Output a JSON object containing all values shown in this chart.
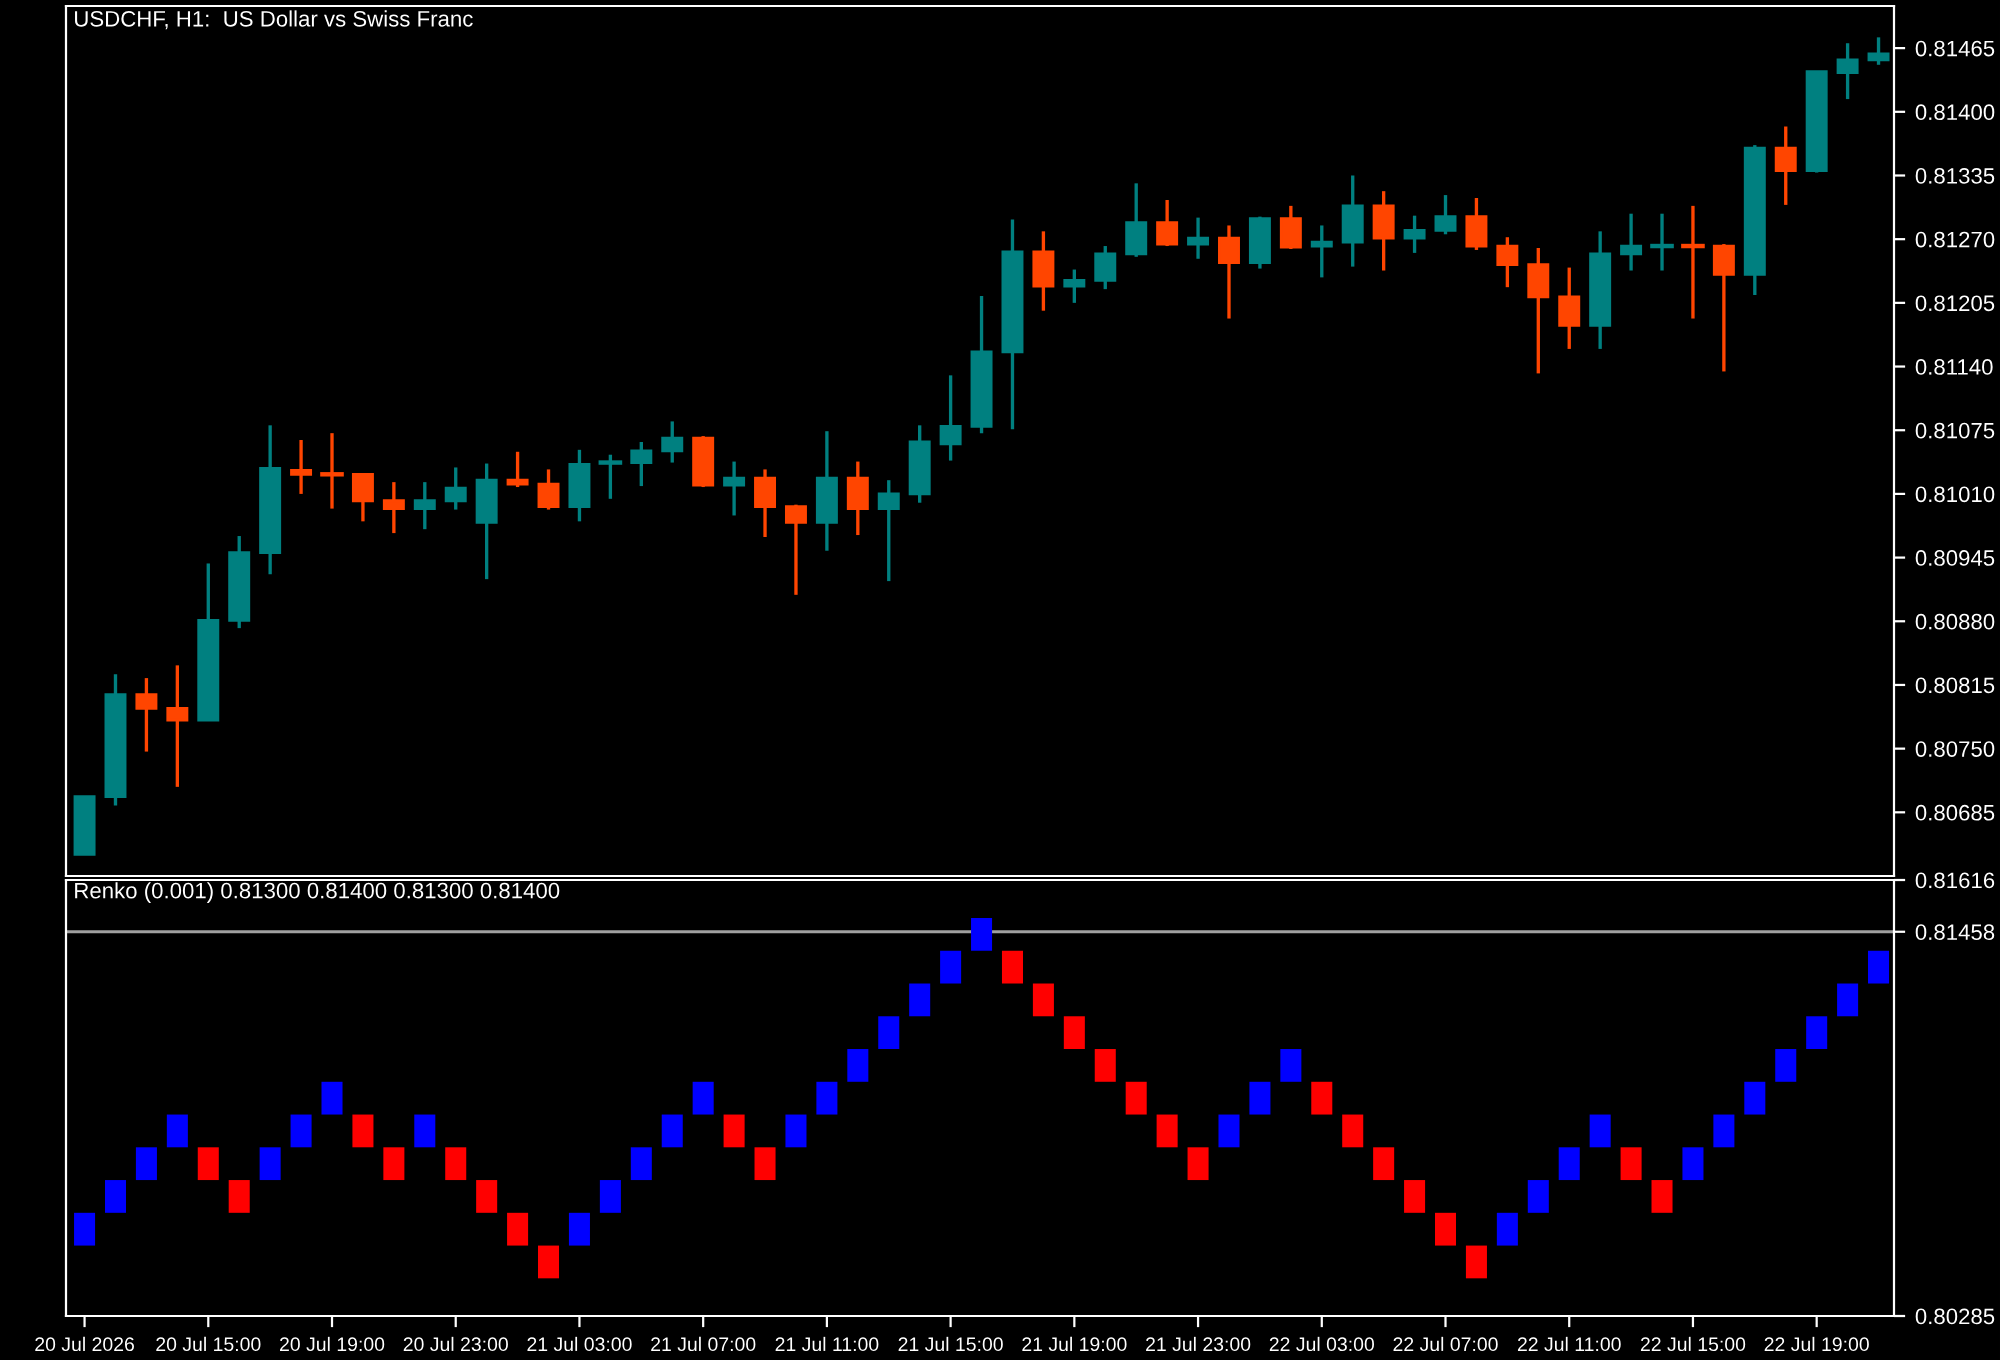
{
  "chart_data": [
    {
      "type": "candlestick",
      "title": "USDCHF, H1:  US Dollar vs Swiss Franc",
      "categories": [
        null,
        null,
        null,
        null,
        null,
        null,
        null,
        null,
        null,
        null,
        null,
        null,
        null,
        null,
        null,
        null,
        null,
        null,
        null,
        null,
        null,
        null,
        null,
        null,
        null,
        null,
        null,
        null,
        null,
        null,
        null,
        null,
        null,
        null,
        null,
        null,
        null,
        null,
        null,
        null,
        null,
        null,
        null,
        null,
        null,
        null,
        null,
        null,
        null,
        null,
        null,
        null,
        null,
        null,
        null,
        null,
        null,
        null,
        null
      ],
      "ohlc": [
        [
          0.80642,
          0.80701,
          0.80642,
          0.80701
        ],
        [
          0.80701,
          0.80826,
          0.80692,
          0.80805
        ],
        [
          0.80805,
          0.80822,
          0.80747,
          0.80791
        ],
        [
          0.80791,
          0.80835,
          0.80711,
          0.80779
        ],
        [
          0.80779,
          0.80939,
          0.80779,
          0.80881
        ],
        [
          0.80881,
          0.80967,
          0.80873,
          0.8095
        ],
        [
          0.8095,
          0.8108,
          0.80928,
          0.81036
        ],
        [
          0.81034,
          0.81065,
          0.8101,
          0.8103
        ],
        [
          0.8103,
          0.81072,
          0.80995,
          0.8103
        ],
        [
          0.8103,
          0.8103,
          0.80982,
          0.81003
        ],
        [
          0.81003,
          0.81022,
          0.8097,
          0.80995
        ],
        [
          0.80995,
          0.81022,
          0.80974,
          0.81003
        ],
        [
          0.81003,
          0.81037,
          0.80994,
          0.81016
        ],
        [
          0.80981,
          0.81041,
          0.80923,
          0.81024
        ],
        [
          0.81024,
          0.81053,
          0.81017,
          0.8102
        ],
        [
          0.8102,
          0.81035,
          0.80994,
          0.80997
        ],
        [
          0.80997,
          0.81055,
          0.80982,
          0.8104
        ],
        [
          0.81042,
          0.8105,
          0.81005,
          0.81042
        ],
        [
          0.81042,
          0.81063,
          0.81018,
          0.81054
        ],
        [
          0.81054,
          0.81084,
          0.81042,
          0.81067
        ],
        [
          0.81067,
          0.81069,
          0.81017,
          0.81019
        ],
        [
          0.81019,
          0.81043,
          0.80988,
          0.81026
        ],
        [
          0.81026,
          0.81035,
          0.80966,
          0.80997
        ],
        [
          0.80997,
          0.80999,
          0.80907,
          0.80981
        ],
        [
          0.80981,
          0.81074,
          0.80952,
          0.81026
        ],
        [
          0.81026,
          0.81043,
          0.80968,
          0.80995
        ],
        [
          0.80995,
          0.81024,
          0.80921,
          0.8101
        ],
        [
          0.8101,
          0.8108,
          0.81001,
          0.81063
        ],
        [
          0.81061,
          0.81131,
          0.81044,
          0.81079
        ],
        [
          0.81079,
          0.81212,
          0.81072,
          0.81155
        ],
        [
          0.81155,
          0.8129,
          0.81076,
          0.81257
        ],
        [
          0.81257,
          0.81278,
          0.81197,
          0.81222
        ],
        [
          0.81222,
          0.81239,
          0.81205,
          0.81228
        ],
        [
          0.81228,
          0.81263,
          0.81219,
          0.81255
        ],
        [
          0.81255,
          0.81327,
          0.81252,
          0.81287
        ],
        [
          0.81287,
          0.8131,
          0.81263,
          0.81265
        ],
        [
          0.81265,
          0.81292,
          0.8125,
          0.81271
        ],
        [
          0.81271,
          0.81284,
          0.81189,
          0.81246
        ],
        [
          0.81246,
          0.81293,
          0.8124,
          0.81291
        ],
        [
          0.81291,
          0.81304,
          0.8126,
          0.81262
        ],
        [
          0.81263,
          0.81284,
          0.81231,
          0.81267
        ],
        [
          0.81267,
          0.81335,
          0.81242,
          0.81304
        ],
        [
          0.81304,
          0.81319,
          0.81238,
          0.81271
        ],
        [
          0.81271,
          0.81294,
          0.81256,
          0.81279
        ],
        [
          0.81279,
          0.81315,
          0.81275,
          0.81293
        ],
        [
          0.81293,
          0.81312,
          0.81259,
          0.81263
        ],
        [
          0.81263,
          0.81272,
          0.81221,
          0.81244
        ],
        [
          0.81244,
          0.81261,
          0.81133,
          0.81211
        ],
        [
          0.81211,
          0.81241,
          0.81158,
          0.81182
        ],
        [
          0.81182,
          0.81278,
          0.81158,
          0.81255
        ],
        [
          0.81255,
          0.81296,
          0.81238,
          0.81263
        ],
        [
          0.81263,
          0.81296,
          0.81238,
          0.81263
        ],
        [
          0.81263,
          0.81304,
          0.81189,
          0.81263
        ],
        [
          0.81263,
          0.81265,
          0.81135,
          0.81234
        ],
        [
          0.81234,
          0.81366,
          0.81213,
          0.81363
        ],
        [
          0.81363,
          0.81385,
          0.81305,
          0.8134
        ],
        [
          0.8134,
          0.81441,
          0.81338,
          0.81441
        ],
        [
          0.8144,
          0.8147,
          0.81413,
          0.81453
        ],
        [
          0.81453,
          0.81476,
          0.81448,
          0.81459
        ]
      ],
      "colors": [
        "#008080",
        "#008080",
        "#ff4500",
        "#ff4500",
        "#008080",
        "#008080",
        "#008080",
        "#ff4500",
        "#ff4500",
        "#ff4500",
        "#ff4500",
        "#008080",
        "#008080",
        "#008080",
        "#ff4500",
        "#ff4500",
        "#008080",
        "#008080",
        "#008080",
        "#008080",
        "#ff4500",
        "#008080",
        "#ff4500",
        "#ff4500",
        "#008080",
        "#ff4500",
        "#008080",
        "#008080",
        "#008080",
        "#008080",
        "#008080",
        "#ff4500",
        "#008080",
        "#008080",
        "#008080",
        "#ff4500",
        "#008080",
        "#ff4500",
        "#008080",
        "#ff4500",
        "#008080",
        "#008080",
        "#ff4500",
        "#008080",
        "#008080",
        "#ff4500",
        "#ff4500",
        "#ff4500",
        "#ff4500",
        "#008080",
        "#008080",
        "#008080",
        "#ff4500",
        "#ff4500",
        "#008080",
        "#ff4500",
        "#008080",
        "#008080",
        "#008080"
      ],
      "ylim": [
        0.8062,
        0.81508
      ],
      "yticks": [
        0.81465,
        {
          "value": 0.814,
          "label": "0.81400"
        },
        0.81335,
        {
          "value": 0.8127,
          "label": "0.81270"
        },
        0.81205,
        {
          "value": 0.8114,
          "label": "0.81140"
        },
        0.81075,
        {
          "value": 0.8101,
          "label": "0.81010"
        },
        0.80945,
        {
          "value": 0.8088,
          "label": "0.80880"
        },
        0.80815,
        {
          "value": 0.8075,
          "label": "0.80750"
        },
        0.80685
      ]
    },
    {
      "type": "bar",
      "title": "Renko (0.001) 0.81300 0.81400 0.81300 0.81400",
      "categories": [
        "20 Jul 2026",
        null,
        null,
        null,
        "20 Jul 15:00",
        null,
        null,
        null,
        "20 Jul 19:00",
        null,
        null,
        null,
        "20 Jul 23:00",
        null,
        null,
        null,
        "21 Jul 03:00",
        null,
        null,
        null,
        "21 Jul 07:00",
        null,
        null,
        null,
        "21 Jul 11:00",
        null,
        null,
        null,
        "21 Jul 15:00",
        null,
        null,
        null,
        "21 Jul 19:00",
        null,
        null,
        null,
        "21 Jul 23:00",
        null,
        null,
        null,
        "22 Jul 03:00",
        null,
        null,
        null,
        "22 Jul 07:00",
        null,
        null,
        null,
        "22 Jul 11:00",
        null,
        null,
        null,
        "22 Jul 15:00",
        null,
        null,
        null,
        "22 Jul 19:00",
        null,
        null
      ],
      "base": [
        0.805,
        0.806,
        0.807,
        0.808,
        0.808,
        0.807,
        0.807,
        0.808,
        0.809,
        0.809,
        0.808,
        0.808,
        0.808,
        0.807,
        0.806,
        0.805,
        0.805,
        0.806,
        0.807,
        0.808,
        0.809,
        0.809,
        0.808,
        0.808,
        0.809,
        0.81,
        0.811,
        0.812,
        0.813,
        0.814,
        0.814,
        0.813,
        0.812,
        0.811,
        0.81,
        0.809,
        0.808,
        0.808,
        0.809,
        0.81,
        0.81,
        0.809,
        0.808,
        0.807,
        0.806,
        0.805,
        0.805,
        0.806,
        0.807,
        0.808,
        0.808,
        0.807,
        0.807,
        0.808,
        0.809,
        0.81,
        0.811,
        0.812,
        0.813
      ],
      "values": [
        0.001,
        0.001,
        0.001,
        0.001,
        -0.001,
        -0.001,
        0.001,
        0.001,
        0.001,
        -0.001,
        -0.001,
        0.001,
        -0.001,
        -0.001,
        -0.001,
        -0.001,
        0.001,
        0.001,
        0.001,
        0.001,
        0.001,
        -0.001,
        -0.001,
        0.001,
        0.001,
        0.001,
        0.001,
        0.001,
        0.001,
        0.001,
        -0.001,
        -0.001,
        -0.001,
        -0.001,
        -0.001,
        -0.001,
        -0.001,
        0.001,
        0.001,
        0.001,
        -0.001,
        -0.001,
        -0.001,
        -0.001,
        -0.001,
        -0.001,
        0.001,
        0.001,
        0.001,
        0.001,
        -0.001,
        -0.001,
        0.001,
        0.001,
        0.001,
        0.001,
        0.001,
        0.001,
        0.001
      ],
      "colors": [
        "#0000ff",
        "#0000ff",
        "#0000ff",
        "#0000ff",
        "#ff0000",
        "#ff0000",
        "#0000ff",
        "#0000ff",
        "#0000ff",
        "#ff0000",
        "#ff0000",
        "#0000ff",
        "#ff0000",
        "#ff0000",
        "#ff0000",
        "#ff0000",
        "#0000ff",
        "#0000ff",
        "#0000ff",
        "#0000ff",
        "#0000ff",
        "#ff0000",
        "#ff0000",
        "#0000ff",
        "#0000ff",
        "#0000ff",
        "#0000ff",
        "#0000ff",
        "#0000ff",
        "#0000ff",
        "#ff0000",
        "#ff0000",
        "#ff0000",
        "#ff0000",
        "#ff0000",
        "#ff0000",
        "#ff0000",
        "#0000ff",
        "#0000ff",
        "#0000ff",
        "#ff0000",
        "#ff0000",
        "#ff0000",
        "#ff0000",
        "#ff0000",
        "#ff0000",
        "#0000ff",
        "#0000ff",
        "#0000ff",
        "#0000ff",
        "#ff0000",
        "#ff0000",
        "#0000ff",
        "#0000ff",
        "#0000ff",
        "#0000ff",
        "#0000ff",
        "#0000ff",
        "#0000ff"
      ],
      "ylim": [
        0.80285,
        0.81616
      ],
      "yticks": [
        0.81616,
        0.81458,
        0.80285
      ],
      "ref_lines": [
        {
          "axis": "y",
          "value": 0.81458,
          "color": "#a0a0a0"
        }
      ]
    }
  ]
}
